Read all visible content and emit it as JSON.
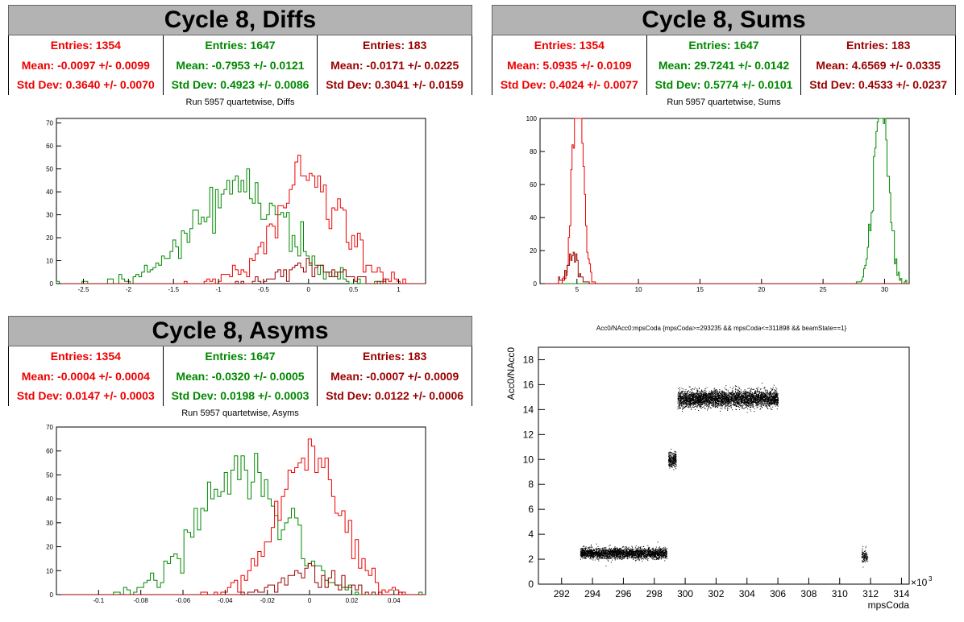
{
  "colors": {
    "red": "#ee0000",
    "green": "#008800",
    "darkred": "#990000",
    "black": "#000000"
  },
  "panels": {
    "diffs": {
      "title": "Cycle 8, Diffs",
      "stats": [
        {
          "entries": "Entries: 1354",
          "mean": "Mean: -0.0097 +/- 0.0099",
          "std": "Std Dev: 0.3640 +/- 0.0070",
          "color": "#ee0000"
        },
        {
          "entries": "Entries: 1647",
          "mean": "Mean: -0.7953 +/- 0.0121",
          "std": "Std Dev: 0.4923 +/- 0.0086",
          "color": "#008800"
        },
        {
          "entries": "Entries: 183",
          "mean": "Mean: -0.0171 +/- 0.0225",
          "std": "Std Dev: 0.3041 +/- 0.0159",
          "color": "#990000"
        }
      ],
      "run_label": "Run 5957 quartetwise, Diffs"
    },
    "sums": {
      "title": "Cycle 8, Sums",
      "stats": [
        {
          "entries": "Entries: 1354",
          "mean": "Mean: 5.0935 +/- 0.0109",
          "std": "Std Dev: 0.4024 +/- 0.0077",
          "color": "#ee0000"
        },
        {
          "entries": "Entries: 1647",
          "mean": "Mean: 29.7241 +/- 0.0142",
          "std": "Std Dev: 0.5774 +/- 0.0101",
          "color": "#008800"
        },
        {
          "entries": "Entries: 183",
          "mean": "Mean: 4.6569 +/- 0.0335",
          "std": "Std Dev: 0.4533 +/- 0.0237",
          "color": "#990000"
        }
      ],
      "run_label": "Run 5957 quartetwise, Sums"
    },
    "asyms": {
      "title": "Cycle 8, Asyms",
      "stats": [
        {
          "entries": "Entries: 1354",
          "mean": "Mean: -0.0004 +/- 0.0004",
          "std": "Std Dev: 0.0147 +/- 0.0003",
          "color": "#ee0000"
        },
        {
          "entries": "Entries: 1647",
          "mean": "Mean: -0.0320 +/- 0.0005",
          "std": "Std Dev: 0.0198 +/- 0.0003",
          "color": "#008800"
        },
        {
          "entries": "Entries: 183",
          "mean": "Mean: -0.0007 +/- 0.0009",
          "std": "Std Dev: 0.0122 +/- 0.0006",
          "color": "#990000"
        }
      ],
      "run_label": "Run 5957 quartetwise, Asyms"
    },
    "scatter": {
      "title": "Acc0/NAcc0:mpsCoda {mpsCoda>=293235 && mpsCoda<=311898 && beamState==1}"
    }
  },
  "chart_data": [
    {
      "type": "histogram",
      "xlim": [
        -2.8,
        1.3
      ],
      "ylim": [
        0,
        72
      ],
      "xticks": [
        -2.5,
        -2,
        -1.5,
        -1,
        -0.5,
        0,
        0.5,
        1
      ],
      "xtick_labels": [
        "-2.5",
        "-2",
        "-1.5",
        "-1",
        "-0.5",
        "0",
        "0.5",
        "1"
      ],
      "yticks": [
        0,
        10,
        20,
        30,
        40,
        50,
        60,
        70
      ],
      "ytick_labels": [
        "0",
        "10",
        "20",
        "30",
        "40",
        "50",
        "60",
        "70"
      ],
      "series": [
        {
          "color": "#008800",
          "entries": 1647,
          "mean": -0.7953,
          "std": 0.4923
        },
        {
          "color": "#ee0000",
          "entries": 1354,
          "mean": -0.0097,
          "std": 0.364
        },
        {
          "color": "#990000",
          "entries": 183,
          "mean": -0.0171,
          "std": 0.3041
        }
      ]
    },
    {
      "type": "histogram",
      "xlim": [
        2,
        32
      ],
      "ylim": [
        0,
        100
      ],
      "xticks": [
        5,
        10,
        15,
        20,
        25,
        30
      ],
      "xtick_labels": [
        "5",
        "10",
        "15",
        "20",
        "25",
        "30"
      ],
      "yticks": [
        0,
        20,
        40,
        60,
        80,
        100
      ],
      "ytick_labels": [
        "0",
        "20",
        "40",
        "60",
        "80",
        "100"
      ],
      "series": [
        {
          "color": "#008800",
          "entries": 1647,
          "mean": 29.7241,
          "std": 0.5774
        },
        {
          "color": "#ee0000",
          "entries": 1354,
          "mean": 5.0935,
          "std": 0.4024
        },
        {
          "color": "#990000",
          "entries": 183,
          "mean": 4.6569,
          "std": 0.4533
        }
      ]
    },
    {
      "type": "histogram",
      "xlim": [
        -0.12,
        0.055
      ],
      "ylim": [
        0,
        70
      ],
      "xticks": [
        -0.1,
        -0.08,
        -0.06,
        -0.04,
        -0.02,
        0,
        0.02,
        0.04
      ],
      "xtick_labels": [
        "-0.1",
        "-0.08",
        "-0.06",
        "-0.04",
        "-0.02",
        "0",
        "0.02",
        "0.04"
      ],
      "yticks": [
        0,
        10,
        20,
        30,
        40,
        50,
        60,
        70
      ],
      "ytick_labels": [
        "0",
        "10",
        "20",
        "30",
        "40",
        "50",
        "60",
        "70"
      ],
      "series": [
        {
          "color": "#008800",
          "entries": 1647,
          "mean": -0.032,
          "std": 0.0198
        },
        {
          "color": "#ee0000",
          "entries": 1354,
          "mean": -0.0004,
          "std": 0.0147
        },
        {
          "color": "#990000",
          "entries": 183,
          "mean": -0.0007,
          "std": 0.0122
        }
      ]
    },
    {
      "type": "scatter",
      "xlabel": "mpsCoda",
      "ylabel": "Acc0/NAcc0",
      "x_multiplier": "×10",
      "x_multiplier_exp": "3",
      "xlim": [
        290.5,
        314.5
      ],
      "ylim": [
        0,
        19
      ],
      "xticks": [
        292,
        294,
        296,
        298,
        300,
        302,
        304,
        306,
        308,
        310,
        312,
        314
      ],
      "xtick_labels": [
        "292",
        "294",
        "296",
        "298",
        "300",
        "302",
        "304",
        "306",
        "308",
        "310",
        "312",
        "314"
      ],
      "yticks": [
        0,
        2,
        4,
        6,
        8,
        10,
        12,
        14,
        16,
        18
      ],
      "ytick_labels": [
        "0",
        "2",
        "4",
        "6",
        "8",
        "10",
        "12",
        "14",
        "16",
        "18"
      ],
      "clusters": [
        {
          "x": [
            293.2,
            298.8
          ],
          "y_center": 2.5,
          "y_spread": 0.35,
          "n": 2600
        },
        {
          "x": [
            298.9,
            299.4
          ],
          "y_center": 10.0,
          "y_spread": 0.5,
          "n": 260
        },
        {
          "x": [
            299.5,
            306.0
          ],
          "y_center": 14.9,
          "y_spread": 0.55,
          "n": 3600
        },
        {
          "x": [
            311.4,
            311.8
          ],
          "y_center": 2.3,
          "y_spread": 0.45,
          "n": 120
        }
      ]
    }
  ]
}
